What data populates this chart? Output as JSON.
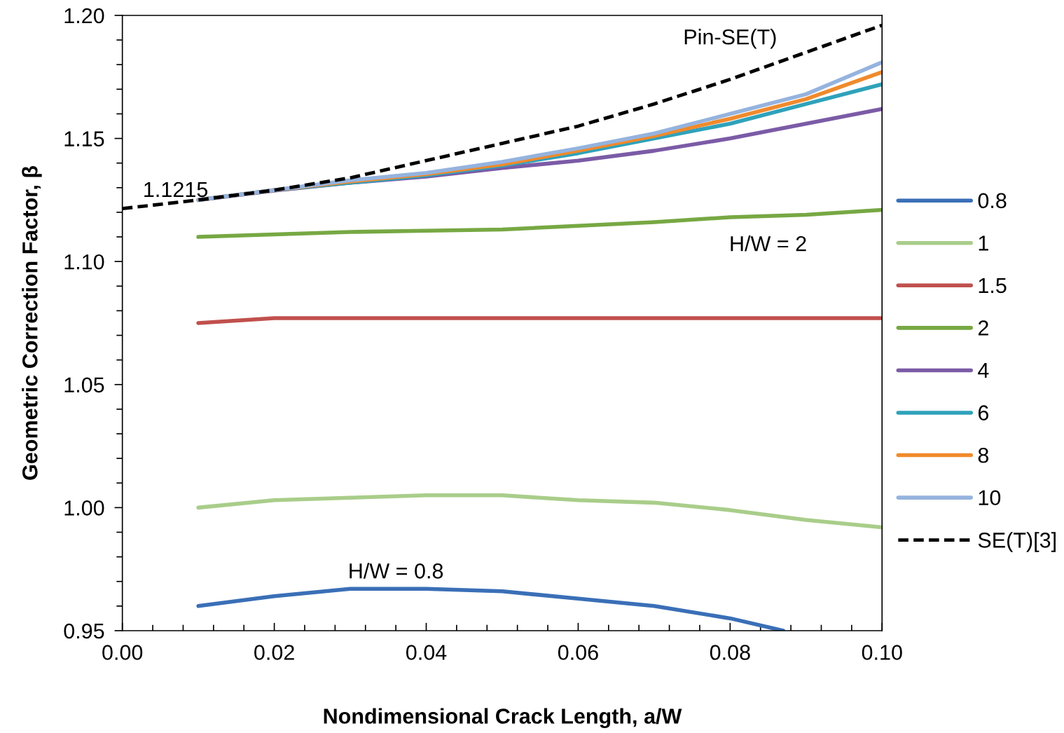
{
  "chart_data": {
    "type": "line",
    "xlabel": "Nondimensional Crack Length, a/W",
    "ylabel": "Geometric Correction Factor, β",
    "x": [
      0.01,
      0.02,
      0.03,
      0.04,
      0.05,
      0.06,
      0.07,
      0.08,
      0.09,
      0.1
    ],
    "series": [
      {
        "name": "0.8",
        "color": "#3a6fb7",
        "x": [
          0.01,
          0.02,
          0.03,
          0.04,
          0.05,
          0.06,
          0.07,
          0.08,
          0.087
        ],
        "values": [
          0.96,
          0.964,
          0.967,
          0.967,
          0.966,
          0.963,
          0.96,
          0.955,
          0.95
        ]
      },
      {
        "name": "1",
        "color": "#a9cd8a",
        "values": [
          1.0,
          1.003,
          1.004,
          1.005,
          1.005,
          1.003,
          1.002,
          0.999,
          0.995,
          0.992
        ]
      },
      {
        "name": "1.5",
        "color": "#c0504d",
        "values": [
          1.075,
          1.077,
          1.077,
          1.077,
          1.077,
          1.077,
          1.077,
          1.077,
          1.077,
          1.077
        ]
      },
      {
        "name": "2",
        "color": "#77a843",
        "values": [
          1.11,
          1.111,
          1.112,
          1.1125,
          1.113,
          1.1145,
          1.116,
          1.118,
          1.119,
          1.121
        ]
      },
      {
        "name": "4",
        "color": "#7b5ba6",
        "values": [
          1.125,
          1.1288,
          1.132,
          1.1345,
          1.138,
          1.141,
          1.145,
          1.15,
          1.156,
          1.162
        ]
      },
      {
        "name": "6",
        "color": "#2fa2bb",
        "values": [
          1.125,
          1.129,
          1.132,
          1.135,
          1.139,
          1.144,
          1.15,
          1.156,
          1.164,
          1.172
        ]
      },
      {
        "name": "8",
        "color": "#f08a2c",
        "values": [
          1.125,
          1.129,
          1.1325,
          1.1355,
          1.1395,
          1.145,
          1.151,
          1.158,
          1.166,
          1.177
        ]
      },
      {
        "name": "10",
        "color": "#95b3de",
        "values": [
          1.125,
          1.129,
          1.133,
          1.136,
          1.1405,
          1.146,
          1.152,
          1.16,
          1.168,
          1.181
        ]
      },
      {
        "name": "SE(T)[3]",
        "color": "#000000",
        "line_style": "dashed",
        "x": [
          0,
          0.01,
          0.02,
          0.03,
          0.04,
          0.05,
          0.06,
          0.07,
          0.08,
          0.09,
          0.1
        ],
        "values": [
          1.1215,
          1.125,
          1.129,
          1.134,
          1.141,
          1.148,
          1.155,
          1.164,
          1.174,
          1.185,
          1.196
        ]
      }
    ],
    "xlim": [
      0,
      0.1
    ],
    "ylim": [
      0.95,
      1.2
    ],
    "xticks": [
      {
        "value": 0,
        "label": "0.00"
      },
      {
        "value": 0.02,
        "label": "0.02"
      },
      {
        "value": 0.04,
        "label": "0.04"
      },
      {
        "value": 0.06,
        "label": "0.06"
      },
      {
        "value": 0.08,
        "label": "0.08"
      },
      {
        "value": 0.1,
        "label": "0.10"
      },
      {
        "value": 0.004,
        "label": null
      },
      {
        "value": 0.008,
        "label": null
      },
      {
        "value": 0.012,
        "label": null
      },
      {
        "value": 0.016,
        "label": null
      },
      {
        "value": 0.024,
        "label": null
      },
      {
        "value": 0.028,
        "label": null
      },
      {
        "value": 0.032,
        "label": null
      },
      {
        "value": 0.036,
        "label": null
      },
      {
        "value": 0.044,
        "label": null
      },
      {
        "value": 0.048,
        "label": null
      },
      {
        "value": 0.052,
        "label": null
      },
      {
        "value": 0.056,
        "label": null
      },
      {
        "value": 0.064,
        "label": null
      },
      {
        "value": 0.068,
        "label": null
      },
      {
        "value": 0.072,
        "label": null
      },
      {
        "value": 0.076,
        "label": null
      },
      {
        "value": 0.084,
        "label": null
      },
      {
        "value": 0.088,
        "label": null
      },
      {
        "value": 0.092,
        "label": null
      },
      {
        "value": 0.096,
        "label": null
      }
    ],
    "yticks": [
      {
        "value": 0.95,
        "label": "0.95"
      },
      {
        "value": 1.0,
        "label": "1.00"
      },
      {
        "value": 1.05,
        "label": "1.05"
      },
      {
        "value": 1.1,
        "label": "1.10"
      },
      {
        "value": 1.15,
        "label": "1.15"
      },
      {
        "value": 1.2,
        "label": "1.20"
      },
      {
        "value": 0.96,
        "label": null
      },
      {
        "value": 0.97,
        "label": null
      },
      {
        "value": 0.98,
        "label": null
      },
      {
        "value": 0.99,
        "label": null
      },
      {
        "value": 1.01,
        "label": null
      },
      {
        "value": 1.02,
        "label": null
      },
      {
        "value": 1.03,
        "label": null
      },
      {
        "value": 1.04,
        "label": null
      },
      {
        "value": 1.06,
        "label": null
      },
      {
        "value": 1.07,
        "label": null
      },
      {
        "value": 1.08,
        "label": null
      },
      {
        "value": 1.09,
        "label": null
      },
      {
        "value": 1.11,
        "label": null
      },
      {
        "value": 1.12,
        "label": null
      },
      {
        "value": 1.13,
        "label": null
      },
      {
        "value": 1.14,
        "label": null
      },
      {
        "value": 1.16,
        "label": null
      },
      {
        "value": 1.17,
        "label": null
      },
      {
        "value": 1.18,
        "label": null
      },
      {
        "value": 1.19,
        "label": null
      }
    ],
    "annotations": [
      "1.1215",
      "Pin-SE(T)",
      "H/W = 2",
      "H/W = 0.8"
    ],
    "legend": "right",
    "grid": false
  }
}
